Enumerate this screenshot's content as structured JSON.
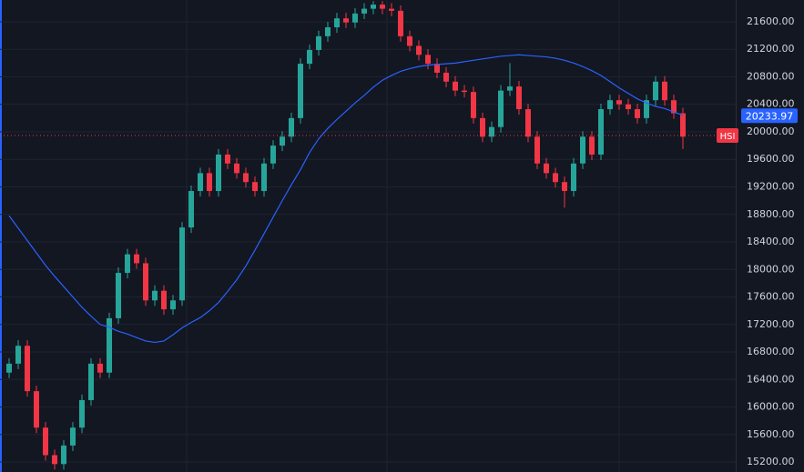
{
  "chart_data": {
    "type": "candlestick",
    "symbol": "HSI",
    "up_color": "#26a69a",
    "down_color": "#f23645",
    "open": [
      16500,
      16630,
      16890,
      16230,
      15700,
      15300,
      15170,
      15440,
      15700,
      16100,
      16630,
      16500,
      17290,
      17950,
      18220,
      18090,
      17550,
      17690,
      17420,
      17550,
      18610,
      19140,
      19400,
      19140,
      19670,
      19540,
      19400,
      19270,
      19140,
      19540,
      19800,
      19930,
      20200,
      20990,
      21190,
      21390,
      21520,
      21650,
      21590,
      21720,
      21790,
      21850,
      21790,
      21760,
      21390,
      21250,
      21120,
      20990,
      20860,
      20730,
      20600,
      20580,
      20200,
      19930,
      20070,
      20600,
      20660,
      20330,
      19930,
      19540,
      19400,
      19270,
      19140,
      19540,
      19930,
      19670,
      20330,
      20460,
      20400,
      20330,
      20200,
      20460,
      20730,
      20460,
      20270
    ],
    "high": [
      16710,
      16970,
      16970,
      16310,
      15780,
      15380,
      15520,
      15780,
      16180,
      16710,
      16710,
      17370,
      18030,
      18300,
      18300,
      18170,
      17770,
      17770,
      17630,
      18690,
      19220,
      19480,
      19480,
      19750,
      19750,
      19620,
      19480,
      19350,
      19620,
      19880,
      20010,
      20280,
      21070,
      21270,
      21470,
      21600,
      21730,
      21730,
      21800,
      21870,
      21900,
      21900,
      21870,
      21840,
      21470,
      21330,
      21200,
      21070,
      20940,
      20810,
      20680,
      20660,
      20280,
      20150,
      20680,
      21000,
      20740,
      20410,
      20010,
      19620,
      19480,
      19350,
      19620,
      20010,
      20010,
      20410,
      20540,
      20540,
      20480,
      20410,
      20540,
      20810,
      20810,
      20540,
      20350
    ],
    "low": [
      16420,
      16550,
      16150,
      15620,
      15220,
      15090,
      15090,
      15360,
      15620,
      16020,
      16420,
      16420,
      17210,
      17870,
      18010,
      17470,
      17470,
      17340,
      17340,
      17470,
      18530,
      19060,
      19060,
      19060,
      19460,
      19320,
      19190,
      19060,
      19060,
      19460,
      19720,
      19850,
      20120,
      20910,
      21110,
      21310,
      21440,
      21510,
      21510,
      21640,
      21710,
      21710,
      21680,
      21310,
      21170,
      21040,
      20910,
      20780,
      20650,
      20520,
      20500,
      20120,
      19850,
      19850,
      19990,
      20520,
      20250,
      19850,
      19460,
      19320,
      19190,
      18900,
      19060,
      19460,
      19590,
      19590,
      20250,
      20320,
      20250,
      20120,
      20120,
      20380,
      20380,
      20190,
      19750
    ],
    "close": [
      16630,
      16890,
      16230,
      15700,
      15300,
      15170,
      15440,
      15700,
      16100,
      16630,
      16500,
      17290,
      17950,
      18220,
      18090,
      17550,
      17690,
      17420,
      17550,
      18610,
      19140,
      19400,
      19140,
      19670,
      19540,
      19400,
      19270,
      19140,
      19540,
      19800,
      19930,
      20200,
      20990,
      21190,
      21390,
      21520,
      21650,
      21590,
      21720,
      21790,
      21850,
      21790,
      21760,
      21390,
      21250,
      21120,
      20990,
      20860,
      20730,
      20600,
      20580,
      20200,
      19930,
      20070,
      20600,
      20660,
      20330,
      19930,
      19540,
      19400,
      19270,
      19140,
      19540,
      19930,
      19670,
      20330,
      20460,
      20400,
      20330,
      20200,
      20460,
      20730,
      20460,
      20270,
      19930
    ],
    "moving_average": {
      "color": "#2962ff",
      "values": [
        18780,
        18600,
        18420,
        18240,
        18060,
        17900,
        17750,
        17600,
        17450,
        17320,
        17200,
        17160,
        17100,
        17060,
        17010,
        16960,
        16940,
        16960,
        17050,
        17150,
        17230,
        17300,
        17400,
        17520,
        17680,
        17850,
        18050,
        18280,
        18520,
        18760,
        19000,
        19230,
        19450,
        19700,
        19900,
        20050,
        20180,
        20300,
        20420,
        20530,
        20650,
        20750,
        20820,
        20880,
        20920,
        20950,
        20970,
        20980,
        20990,
        21000,
        21020,
        21040,
        21060,
        21080,
        21100,
        21110,
        21120,
        21110,
        21100,
        21090,
        21070,
        21040,
        21000,
        20950,
        20890,
        20820,
        20730,
        20640,
        20560,
        20480,
        20420,
        20370,
        20340,
        20290,
        20240
      ],
      "last": 20233.97
    },
    "last_price": 19947,
    "ylim": [
      15055,
      21917
    ],
    "yticks": [
      {
        "value": 15200,
        "label": "15200.00"
      },
      {
        "value": 15600,
        "label": "15600.00"
      },
      {
        "value": 16000,
        "label": "16000.00"
      },
      {
        "value": 16400,
        "label": "16400.00"
      },
      {
        "value": 16800,
        "label": "16800.00"
      },
      {
        "value": 17200,
        "label": "17200.00"
      },
      {
        "value": 17600,
        "label": "17600.00"
      },
      {
        "value": 18000,
        "label": "18000.00"
      },
      {
        "value": 18400,
        "label": "18400.00"
      },
      {
        "value": 18800,
        "label": "18800.00"
      },
      {
        "value": 19200,
        "label": "19200.00"
      },
      {
        "value": 19600,
        "label": "19600.00"
      },
      {
        "value": 20000,
        "label": "20000.00"
      },
      {
        "value": 20400,
        "label": "20400.00"
      },
      {
        "value": 20800,
        "label": "20800.00"
      },
      {
        "value": 21200,
        "label": "21200.00"
      },
      {
        "value": 21600,
        "label": "21600.00"
      }
    ],
    "grid": true
  }
}
